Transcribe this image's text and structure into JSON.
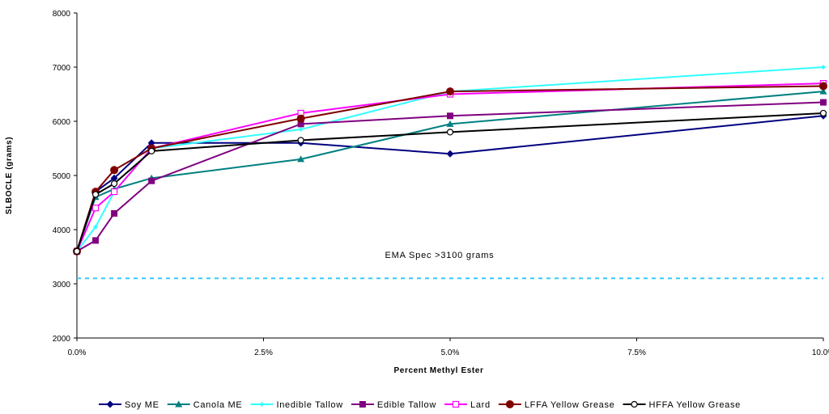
{
  "chart_data": {
    "type": "line",
    "title": "",
    "xlabel": "Percent Methyl Ester",
    "ylabel": "SLBOCLE (grams)",
    "xlim": [
      0,
      10
    ],
    "ylim": [
      2000,
      8000
    ],
    "x_tick_values": [
      0,
      2.5,
      5,
      7.5,
      10
    ],
    "x_tick_labels": [
      "0.0%",
      "2.5%",
      "5.0%",
      "7.5%",
      "10.0%"
    ],
    "y_tick_values": [
      2000,
      3000,
      4000,
      5000,
      6000,
      7000,
      8000
    ],
    "y_tick_labels": [
      "2000",
      "3000",
      "4000",
      "5000",
      "6000",
      "7000",
      "8000"
    ],
    "grid": false,
    "legend_position": "bottom",
    "x": [
      0,
      0.25,
      0.5,
      1,
      3,
      5,
      10
    ],
    "series": [
      {
        "name": "Soy ME",
        "color": "#000080",
        "marker": "diamond",
        "values": [
          3600,
          4700,
          4950,
          5600,
          5600,
          5400,
          6100
        ]
      },
      {
        "name": "Canola ME",
        "color": "#008080",
        "marker": "triangle",
        "values": [
          3600,
          4600,
          4750,
          4950,
          5300,
          5950,
          6550
        ]
      },
      {
        "name": "Inedible Tallow",
        "color": "#33FFFF",
        "marker": "diamond-small",
        "values": [
          3600,
          4050,
          4700,
          5500,
          5850,
          6550,
          7000
        ]
      },
      {
        "name": "Edible Tallow",
        "color": "#800080",
        "marker": "square",
        "values": [
          3600,
          3800,
          4300,
          4900,
          5950,
          6100,
          6350
        ]
      },
      {
        "name": "Lard",
        "color": "#FF00FF",
        "marker": "square-open",
        "values": [
          3600,
          4400,
          4700,
          5500,
          6150,
          6500,
          6700
        ]
      },
      {
        "name": "LFFA Yellow Grease",
        "color": "#800000",
        "marker": "circle",
        "values": [
          3600,
          4700,
          5100,
          5500,
          6050,
          6550,
          6650
        ]
      },
      {
        "name": "HFFA Yellow Grease",
        "color": "#000000",
        "marker": "circle-open",
        "values": [
          3600,
          4650,
          4850,
          5450,
          5650,
          5800,
          6150
        ]
      }
    ],
    "reference_line": {
      "value": 3100,
      "color": "#33CCFF",
      "style": "dashed"
    },
    "annotation": "EMA Spec  >3100 grams"
  }
}
